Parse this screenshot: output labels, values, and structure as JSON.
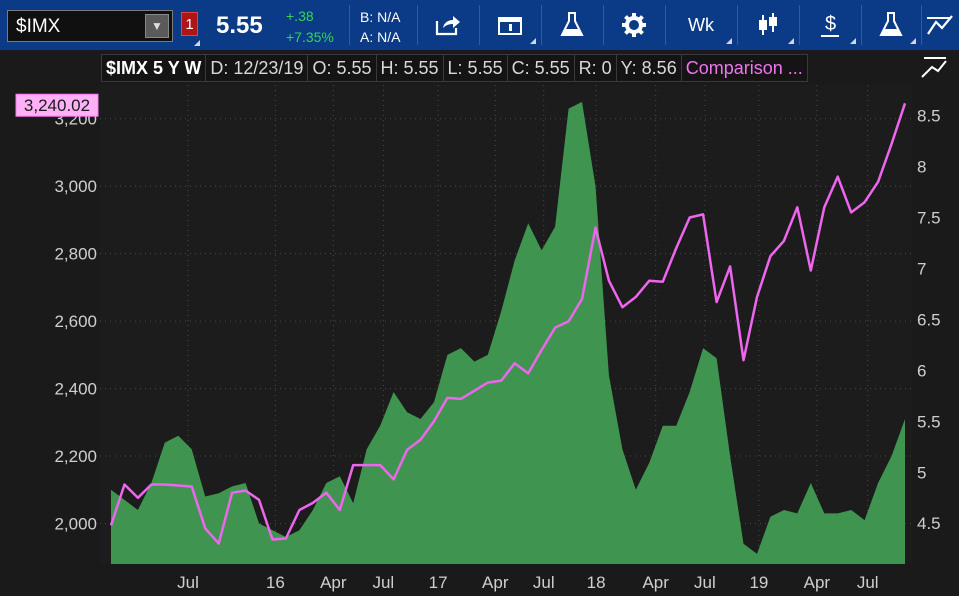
{
  "toolbar": {
    "symbol": "$IMX",
    "alert_badge": "1",
    "last": "5.55",
    "change": "+.38",
    "change_pct": "+7.35%",
    "bid": "B: N/A",
    "ask": "A: N/A",
    "aggregation": "Wk",
    "colors": {
      "background": "#0b3a86",
      "up": "#35d35a"
    }
  },
  "header": {
    "title": "$IMX 5 Y W",
    "date": "D: 12/23/19",
    "open": "O: 5.55",
    "high": "H: 5.55",
    "low": "L: 5.55",
    "close": "C: 5.55",
    "range": "R: 0",
    "y_value": "Y: 8.56",
    "comparison": "Comparison ..."
  },
  "chart_data": {
    "type": "area",
    "area_color": "#3f9550",
    "line_color": "#ee66ee",
    "comparison_marker": "3,240.02",
    "x_ticks": [
      {
        "label": "Jul",
        "t": 0.097
      },
      {
        "label": "16",
        "t": 0.207
      },
      {
        "label": "Apr",
        "t": 0.28
      },
      {
        "label": "Jul",
        "t": 0.343
      },
      {
        "label": "17",
        "t": 0.412
      },
      {
        "label": "Apr",
        "t": 0.484
      },
      {
        "label": "Jul",
        "t": 0.545
      },
      {
        "label": "18",
        "t": 0.611
      },
      {
        "label": "Apr",
        "t": 0.686
      },
      {
        "label": "Jul",
        "t": 0.748
      },
      {
        "label": "19",
        "t": 0.816
      },
      {
        "label": "Apr",
        "t": 0.889
      },
      {
        "label": "Jul",
        "t": 0.953
      }
    ],
    "left_axis": {
      "ylim": [
        1880,
        3300
      ],
      "ticks": [
        "3,200",
        "3,000",
        "2,800",
        "2,600",
        "2,400",
        "2,200",
        "2,000"
      ],
      "tick_values": [
        3200,
        3000,
        2800,
        2600,
        2400,
        2200,
        2000
      ]
    },
    "right_axis": {
      "ylim": [
        4.1,
        8.8
      ],
      "ticks": [
        "8.5",
        "8",
        "7.5",
        "7",
        "6.5",
        "6",
        "5.5",
        "5",
        "4.5"
      ],
      "tick_values": [
        8.5,
        8,
        7.5,
        7,
        6.5,
        6,
        5.5,
        5,
        4.5
      ]
    },
    "series": [
      {
        "name": "Comparison",
        "axis": "left",
        "values": [
          2100,
          2070,
          2040,
          2120,
          2240,
          2260,
          2220,
          2080,
          2090,
          2110,
          2120,
          2000,
          1980,
          1960,
          1980,
          2040,
          2120,
          2140,
          2060,
          2220,
          2290,
          2390,
          2330,
          2310,
          2360,
          2500,
          2520,
          2480,
          2500,
          2630,
          2780,
          2890,
          2810,
          2880,
          3230,
          3250,
          3000,
          2440,
          2220,
          2100,
          2180,
          2290,
          2290,
          2390,
          2520,
          2490,
          2200,
          1940,
          1910,
          2020,
          2040,
          2030,
          2120,
          2030,
          2030,
          2040,
          2010,
          2120,
          2200,
          2310
        ]
      },
      {
        "name": "$IMX",
        "axis": "right",
        "values": [
          4.48,
          4.88,
          4.75,
          4.88,
          4.88,
          4.87,
          4.86,
          4.45,
          4.3,
          4.8,
          4.82,
          4.73,
          4.34,
          4.35,
          4.63,
          4.7,
          4.8,
          4.63,
          5.07,
          5.07,
          5.07,
          4.93,
          5.22,
          5.32,
          5.5,
          5.73,
          5.72,
          5.8,
          5.88,
          5.9,
          6.07,
          5.97,
          6.2,
          6.42,
          6.48,
          6.7,
          7.4,
          6.88,
          6.62,
          6.72,
          6.88,
          6.87,
          7.2,
          7.5,
          7.53,
          6.67,
          7.02,
          6.1,
          6.72,
          7.12,
          7.27,
          7.6,
          6.98,
          7.6,
          7.9,
          7.55,
          7.65,
          7.85,
          8.22,
          8.62
        ]
      }
    ]
  }
}
